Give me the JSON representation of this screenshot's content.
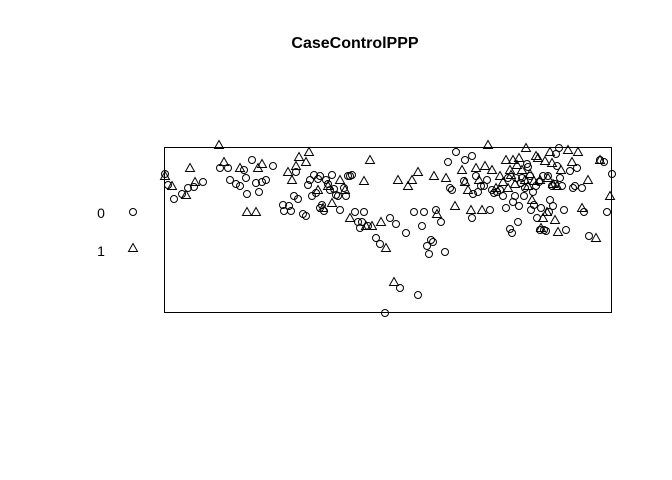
{
  "chart_data": {
    "type": "scatter",
    "title": "CaseControlPPP",
    "xlabel": "",
    "ylabel": "",
    "axes": "none",
    "grid": false,
    "legend": {
      "position": "left",
      "entries": [
        {
          "label": "0",
          "marker": "circle"
        },
        {
          "label": "1",
          "marker": "triangle"
        }
      ]
    },
    "series": [
      {
        "name": "0",
        "marker": "circle",
        "points": [
          [
            165,
            174
          ],
          [
            168,
            185
          ],
          [
            174,
            199
          ],
          [
            182,
            194
          ],
          [
            188,
            188
          ],
          [
            194,
            187
          ],
          [
            203,
            182
          ],
          [
            220,
            168
          ],
          [
            228,
            168
          ],
          [
            230,
            180
          ],
          [
            236,
            184
          ],
          [
            240,
            186
          ],
          [
            244,
            170
          ],
          [
            246,
            178
          ],
          [
            247,
            194
          ],
          [
            252,
            160
          ],
          [
            256,
            183
          ],
          [
            259,
            192
          ],
          [
            262,
            182
          ],
          [
            266,
            180
          ],
          [
            273,
            166
          ],
          [
            283,
            205
          ],
          [
            284,
            211
          ],
          [
            289,
            206
          ],
          [
            291,
            211
          ],
          [
            294,
            196
          ],
          [
            296,
            172
          ],
          [
            298,
            199
          ],
          [
            303,
            214
          ],
          [
            306,
            216
          ],
          [
            308,
            185
          ],
          [
            310,
            180
          ],
          [
            312,
            196
          ],
          [
            314,
            175
          ],
          [
            316,
            193
          ],
          [
            318,
            179
          ],
          [
            320,
            176
          ],
          [
            320,
            208
          ],
          [
            322,
            205
          ],
          [
            324,
            211
          ],
          [
            326,
            180
          ],
          [
            328,
            184
          ],
          [
            330,
            190
          ],
          [
            332,
            175
          ],
          [
            334,
            189
          ],
          [
            336,
            195
          ],
          [
            338,
            196
          ],
          [
            340,
            210
          ],
          [
            344,
            188
          ],
          [
            346,
            196
          ],
          [
            348,
            176
          ],
          [
            350,
            176
          ],
          [
            352,
            175
          ],
          [
            355,
            212
          ],
          [
            358,
            222
          ],
          [
            360,
            228
          ],
          [
            362,
            222
          ],
          [
            364,
            212
          ],
          [
            368,
            226
          ],
          [
            376,
            238
          ],
          [
            380,
            244
          ],
          [
            390,
            218
          ],
          [
            396,
            224
          ],
          [
            400,
            288
          ],
          [
            406,
            233
          ],
          [
            414,
            212
          ],
          [
            418,
            295
          ],
          [
            422,
            226
          ],
          [
            424,
            212
          ],
          [
            427,
            246
          ],
          [
            429,
            254
          ],
          [
            431,
            240
          ],
          [
            433,
            242
          ],
          [
            436,
            210
          ],
          [
            441,
            222
          ],
          [
            445,
            252
          ],
          [
            448,
            162
          ],
          [
            450,
            188
          ],
          [
            452,
            190
          ],
          [
            456,
            152
          ],
          [
            464,
            181
          ],
          [
            465,
            160
          ],
          [
            472,
            156
          ],
          [
            472,
            218
          ],
          [
            473,
            194
          ],
          [
            476,
            176
          ],
          [
            478,
            192
          ],
          [
            481,
            186
          ],
          [
            484,
            186
          ],
          [
            487,
            180
          ],
          [
            490,
            210
          ],
          [
            492,
            190
          ],
          [
            494,
            193
          ],
          [
            497,
            192
          ],
          [
            500,
            190
          ],
          [
            503,
            196
          ],
          [
            506,
            208
          ],
          [
            508,
            178
          ],
          [
            510,
            229
          ],
          [
            512,
            233
          ],
          [
            513,
            202
          ],
          [
            515,
            196
          ],
          [
            516,
            178
          ],
          [
            518,
            222
          ],
          [
            519,
            206
          ],
          [
            521,
            183
          ],
          [
            522,
            178
          ],
          [
            524,
            196
          ],
          [
            525,
            188
          ],
          [
            527,
            164
          ],
          [
            528,
            167
          ],
          [
            530,
            176
          ],
          [
            531,
            210
          ],
          [
            533,
            192
          ],
          [
            534,
            205
          ],
          [
            536,
            186
          ],
          [
            537,
            218
          ],
          [
            539,
            182
          ],
          [
            540,
            230
          ],
          [
            541,
            208
          ],
          [
            543,
            176
          ],
          [
            544,
            230
          ],
          [
            546,
            231
          ],
          [
            548,
            176
          ],
          [
            549,
            212
          ],
          [
            550,
            200
          ],
          [
            552,
            186
          ],
          [
            553,
            206
          ],
          [
            555,
            184
          ],
          [
            556,
            154
          ],
          [
            557,
            166
          ],
          [
            559,
            148
          ],
          [
            560,
            178
          ],
          [
            562,
            186
          ],
          [
            564,
            210
          ],
          [
            566,
            230
          ],
          [
            570,
            171
          ],
          [
            573,
            188
          ],
          [
            575,
            186
          ],
          [
            577,
            168
          ],
          [
            582,
            188
          ],
          [
            584,
            212
          ],
          [
            589,
            236
          ],
          [
            600,
            160
          ],
          [
            604,
            162
          ],
          [
            607,
            212
          ],
          [
            612,
            174
          ],
          [
            385,
            313
          ]
        ]
      },
      {
        "name": "1",
        "marker": "triangle",
        "points": [
          [
            165,
            176
          ],
          [
            172,
            186
          ],
          [
            186,
            195
          ],
          [
            190,
            168
          ],
          [
            195,
            182
          ],
          [
            219,
            145
          ],
          [
            224,
            162
          ],
          [
            240,
            168
          ],
          [
            247,
            212
          ],
          [
            256,
            212
          ],
          [
            258,
            168
          ],
          [
            262,
            164
          ],
          [
            288,
            172
          ],
          [
            292,
            180
          ],
          [
            296,
            166
          ],
          [
            299,
            157
          ],
          [
            306,
            162
          ],
          [
            309,
            152
          ],
          [
            318,
            190
          ],
          [
            323,
            208
          ],
          [
            328,
            186
          ],
          [
            332,
            203
          ],
          [
            340,
            180
          ],
          [
            345,
            190
          ],
          [
            350,
            218
          ],
          [
            364,
            181
          ],
          [
            366,
            226
          ],
          [
            370,
            160
          ],
          [
            372,
            226
          ],
          [
            381,
            222
          ],
          [
            386,
            248
          ],
          [
            394,
            282
          ],
          [
            398,
            180
          ],
          [
            408,
            186
          ],
          [
            412,
            180
          ],
          [
            418,
            172
          ],
          [
            434,
            176
          ],
          [
            437,
            214
          ],
          [
            446,
            178
          ],
          [
            455,
            206
          ],
          [
            462,
            170
          ],
          [
            465,
            182
          ],
          [
            468,
            190
          ],
          [
            471,
            210
          ],
          [
            476,
            168
          ],
          [
            479,
            180
          ],
          [
            482,
            210
          ],
          [
            485,
            166
          ],
          [
            488,
            145
          ],
          [
            492,
            170
          ],
          [
            496,
            188
          ],
          [
            500,
            176
          ],
          [
            503,
            182
          ],
          [
            506,
            160
          ],
          [
            508,
            188
          ],
          [
            510,
            170
          ],
          [
            511,
            175
          ],
          [
            513,
            160
          ],
          [
            515,
            184
          ],
          [
            517,
            165
          ],
          [
            519,
            158
          ],
          [
            522,
            170
          ],
          [
            525,
            180
          ],
          [
            526,
            148
          ],
          [
            528,
            186
          ],
          [
            530,
            174
          ],
          [
            532,
            200
          ],
          [
            534,
            181
          ],
          [
            536,
            156
          ],
          [
            538,
            158
          ],
          [
            540,
            180
          ],
          [
            541,
            228
          ],
          [
            543,
            218
          ],
          [
            545,
            161
          ],
          [
            547,
            212
          ],
          [
            548,
            178
          ],
          [
            550,
            152
          ],
          [
            552,
            163
          ],
          [
            553,
            184
          ],
          [
            555,
            220
          ],
          [
            557,
            186
          ],
          [
            558,
            232
          ],
          [
            561,
            170
          ],
          [
            568,
            150
          ],
          [
            572,
            162
          ],
          [
            578,
            152
          ],
          [
            582,
            208
          ],
          [
            588,
            180
          ],
          [
            596,
            238
          ],
          [
            600,
            160
          ],
          [
            610,
            196
          ]
        ]
      }
    ]
  }
}
